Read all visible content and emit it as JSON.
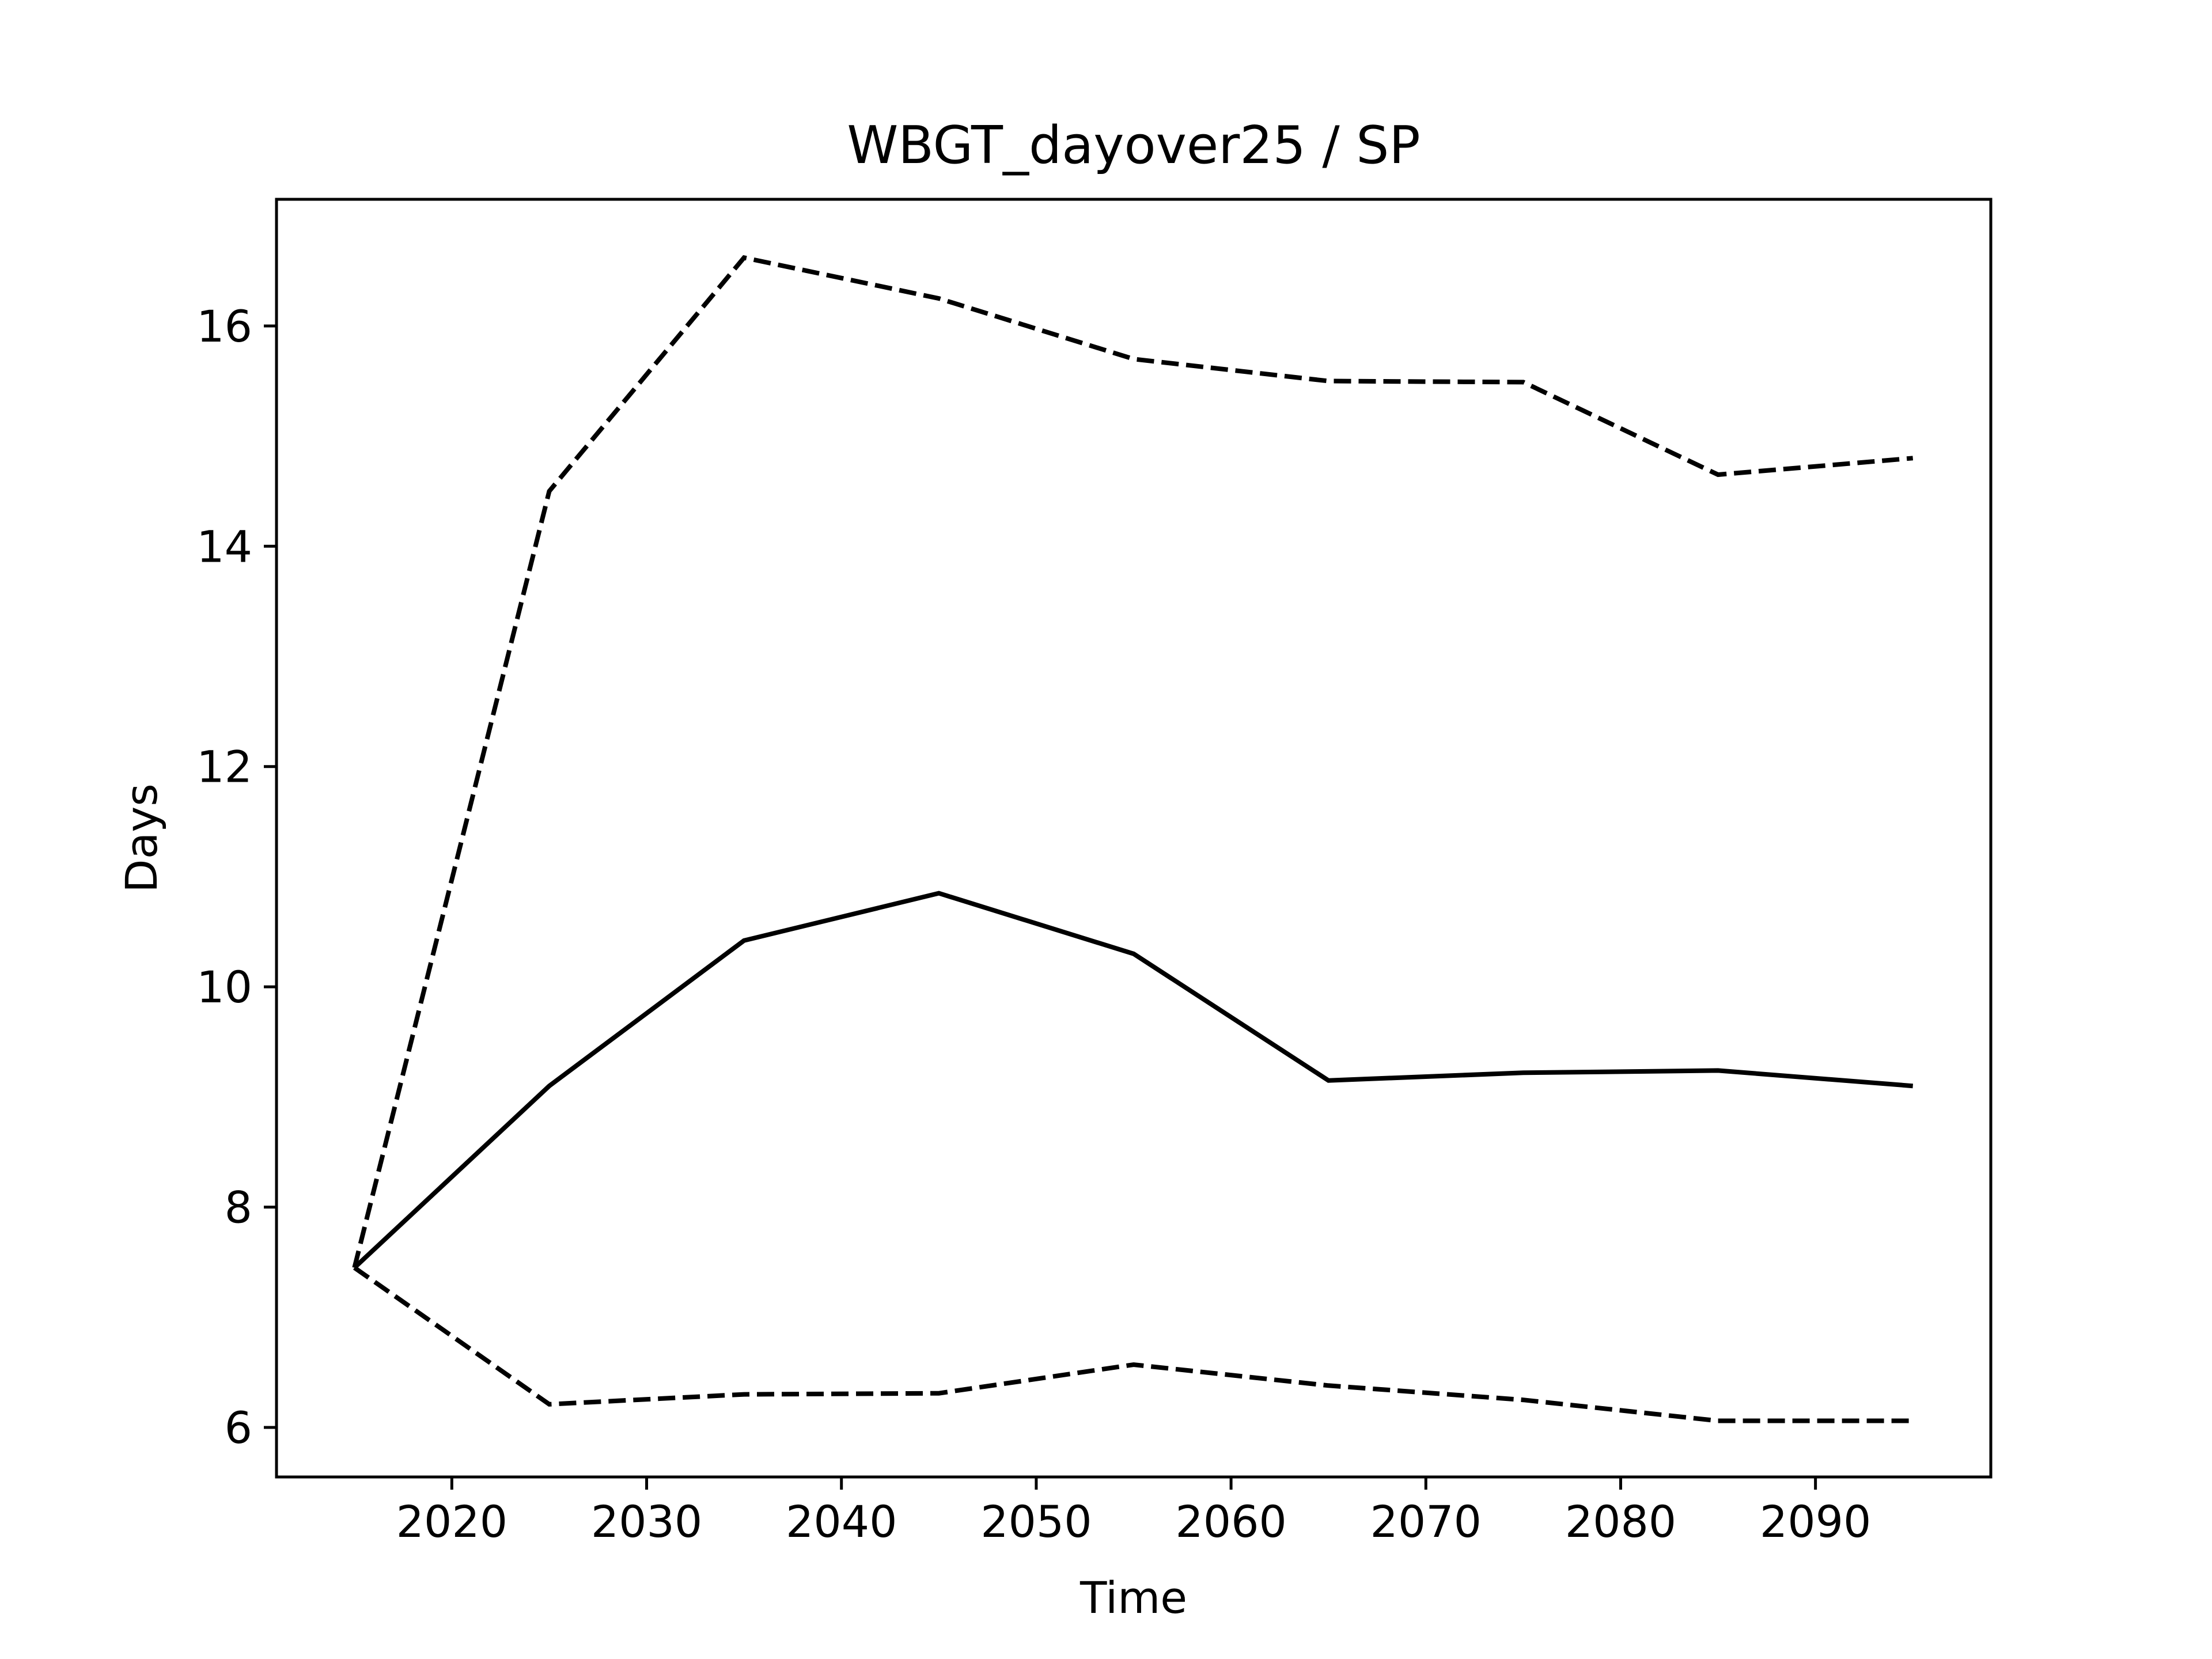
{
  "chart_data": {
    "type": "line",
    "title": "WBGT_dayover25 / SP",
    "xlabel": "Time",
    "ylabel": "Days",
    "xlim": [
      2011,
      2099
    ],
    "ylim": [
      5.55,
      17.15
    ],
    "xticks": [
      2020,
      2030,
      2040,
      2050,
      2060,
      2070,
      2080,
      2090
    ],
    "yticks": [
      6,
      8,
      10,
      12,
      14,
      16
    ],
    "grid": false,
    "legend": "none",
    "x": [
      2015,
      2025,
      2035,
      2045,
      2055,
      2065,
      2075,
      2085,
      2095
    ],
    "series": [
      {
        "style": "solid",
        "color": "#000000",
        "values": [
          7.45,
          9.1,
          10.42,
          10.85,
          10.3,
          9.15,
          9.22,
          9.24,
          9.1
        ]
      },
      {
        "style": "dashed",
        "color": "#000000",
        "values": [
          7.45,
          14.5,
          16.62,
          16.25,
          15.7,
          15.5,
          15.49,
          14.65,
          14.8
        ]
      },
      {
        "style": "dashed",
        "color": "#000000",
        "values": [
          7.45,
          6.21,
          6.3,
          6.31,
          6.57,
          6.38,
          6.25,
          6.06,
          6.06
        ]
      }
    ]
  }
}
